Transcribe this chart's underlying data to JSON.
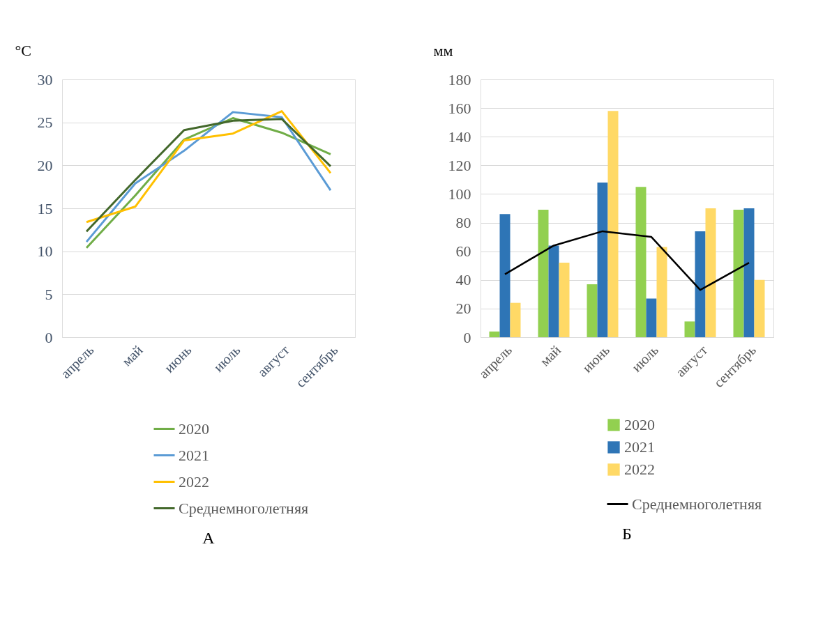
{
  "chart_data": [
    {
      "type": "line",
      "title": "А",
      "ylabel": "°C",
      "categories": [
        "апрель",
        "май",
        "июнь",
        "июль",
        "август",
        "сентябрь"
      ],
      "ylim": [
        0,
        30
      ],
      "yticks": [
        0,
        5,
        10,
        15,
        20,
        25,
        30
      ],
      "grid": "y",
      "legend": "bottom",
      "marker": "none",
      "line_style": "solid",
      "series": [
        {
          "name": "2020",
          "color": "#70ad47",
          "values": [
            10.4,
            16.5,
            23.0,
            25.5,
            23.8,
            21.3
          ]
        },
        {
          "name": "2021",
          "color": "#5b9bd5",
          "values": [
            11.1,
            17.9,
            21.7,
            26.2,
            25.6,
            17.1
          ]
        },
        {
          "name": "2022",
          "color": "#ffc000",
          "values": [
            13.4,
            15.2,
            22.9,
            23.7,
            26.3,
            19.1
          ]
        },
        {
          "name": "Среднемноголетняя",
          "color": "#43682b",
          "values": [
            12.3,
            18.3,
            24.1,
            25.2,
            25.4,
            19.9
          ]
        }
      ]
    },
    {
      "type": "bar",
      "title": "Б",
      "ylabel": "мм",
      "categories": [
        "апрель",
        "май",
        "июнь",
        "июль",
        "август",
        "сентябрь"
      ],
      "ylim": [
        0,
        180
      ],
      "yticks": [
        0,
        20,
        40,
        60,
        80,
        100,
        120,
        140,
        160,
        180
      ],
      "grid": "y",
      "legend": "bottom",
      "series": [
        {
          "name": "2020",
          "color": "#92d050",
          "values": [
            4,
            89,
            37,
            105,
            11,
            89
          ]
        },
        {
          "name": "2021",
          "color": "#2e75b6",
          "values": [
            86,
            64,
            108,
            27,
            74,
            90
          ]
        },
        {
          "name": "2022",
          "color": "#ffd966",
          "values": [
            24,
            52,
            158,
            63,
            90,
            40
          ]
        },
        {
          "name": "Среднемноголетняя",
          "type": "line",
          "color": "#000000",
          "values": [
            44,
            64,
            74,
            70,
            33,
            52
          ]
        }
      ]
    }
  ]
}
